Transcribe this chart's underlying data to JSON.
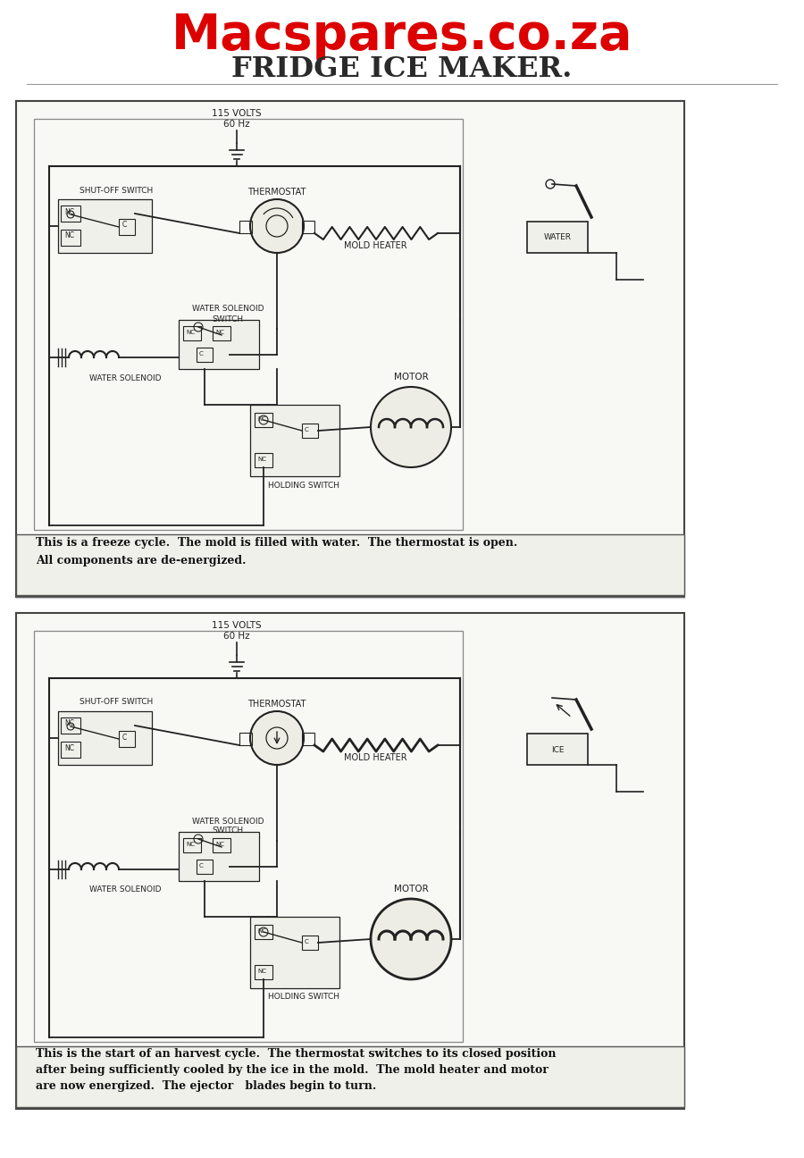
{
  "title1": "Macspares.co.za",
  "title2": "FRIDGE ICE MAKER.",
  "title1_color": "#dd0000",
  "title2_color": "#2a2a2a",
  "bg_color": "#ffffff",
  "diagram_bg": "#f8f8f5",
  "border_color": "#333333",
  "line_color": "#222222",
  "caption1_line1": "This is a freeze cycle.  The mold is filled with water.  The thermostat is open.",
  "caption1_line2": "All components are de-energized.",
  "caption2_line1": "This is the start of an harvest cycle.  The thermostat switches to its closed position",
  "caption2_line2": "after being sufficiently cooled by the ice in the mold.  The mold heater and motor",
  "caption2_line3": "are now energized.  The ejector   blades begin to turn."
}
